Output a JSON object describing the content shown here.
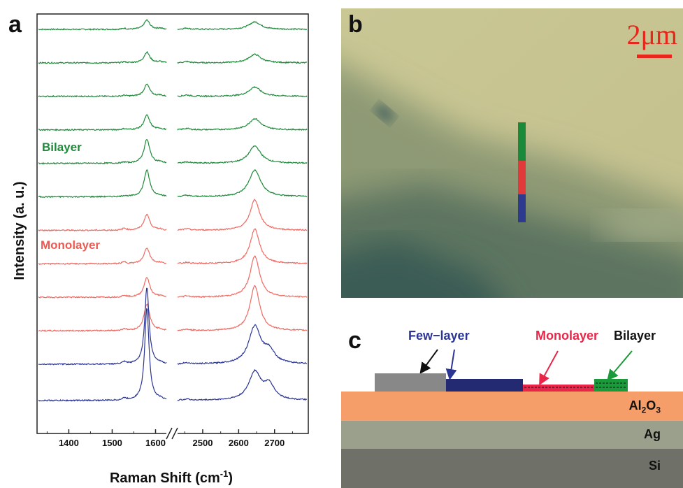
{
  "figure": {
    "panel_a": {
      "letter": "a",
      "xlabel": "Raman Shift (cm",
      "xlabel_sup": "-1",
      "xlabel_close": ")",
      "ylabel": "Intensity (a. u.)",
      "label_bilayer": "Bilayer",
      "label_monolayer": "Monolayer",
      "colors": {
        "bilayer": "#1e8a3a",
        "monolayer": "#ee6a62",
        "fewlayer": "#2b3593"
      }
    },
    "panel_b": {
      "letter": "b",
      "scale_bar": "2μm",
      "marker_colors": [
        "#1a8a3a",
        "#e23a3a",
        "#2e3a8e"
      ]
    },
    "panel_c": {
      "letter": "c",
      "legend_fewlayer": "Few",
      "legend_fewlayer_dash": "−",
      "legend_fewlayer_tail": "layer",
      "legend_monolayer": "Monolayer",
      "legend_bilayer": "Bilayer",
      "layers": [
        {
          "name": "Al",
          "sub1": "2",
          "mid": "O",
          "sub2": "3",
          "color": "#f59e6a"
        },
        {
          "name": "Ag",
          "color": "#9aa08c"
        },
        {
          "name": "Si",
          "color": "#6f7068"
        }
      ]
    }
  },
  "chart_data": {
    "type": "line",
    "title": "",
    "xlabel": "Raman Shift (cm-1)",
    "ylabel": "Intensity (a. u.)",
    "x_broken_axis": true,
    "x_segments": [
      {
        "range": [
          1330,
          1625
        ],
        "ticks": [
          1400,
          1500,
          1600
        ]
      },
      {
        "range": [
          2430,
          2790
        ],
        "ticks": [
          2500,
          2600,
          2700
        ]
      }
    ],
    "y_ticks_shown": false,
    "grid": false,
    "peaks": {
      "G": 1580,
      "D_prime_2D": 2645
    },
    "series": [
      {
        "name": "Bilayer",
        "group": "bilayer",
        "G": 0.35,
        "twoD": 0.28,
        "twoD_shoulder": 0.0
      },
      {
        "name": "",
        "group": "bilayer",
        "G": 0.4,
        "twoD": 0.32,
        "twoD_shoulder": 0.0
      },
      {
        "name": "",
        "group": "bilayer",
        "G": 0.45,
        "twoD": 0.35,
        "twoD_shoulder": 0.0
      },
      {
        "name": "",
        "group": "bilayer",
        "G": 0.55,
        "twoD": 0.42,
        "twoD_shoulder": 0.0
      },
      {
        "name": "",
        "group": "bilayer",
        "G": 0.9,
        "twoD": 0.65,
        "twoD_shoulder": 0.0
      },
      {
        "name": "",
        "group": "bilayer",
        "G": 1.0,
        "twoD": 1.0,
        "twoD_shoulder": 0.0
      },
      {
        "name": "Monolayer",
        "group": "monolayer",
        "G": 0.6,
        "twoD": 1.15,
        "twoD_shoulder": 0.0
      },
      {
        "name": "",
        "group": "monolayer",
        "G": 0.6,
        "twoD": 1.3,
        "twoD_shoulder": 0.0
      },
      {
        "name": "",
        "group": "monolayer",
        "G": 0.75,
        "twoD": 1.55,
        "twoD_shoulder": 0.0
      },
      {
        "name": "",
        "group": "monolayer",
        "G": 1.0,
        "twoD": 1.7,
        "twoD_shoulder": 0.0
      },
      {
        "name": "Few-layer",
        "group": "fewlayer",
        "G": 2.9,
        "twoD": 1.4,
        "twoD_shoulder": 0.45
      },
      {
        "name": "",
        "group": "fewlayer",
        "G": 3.5,
        "twoD": 1.05,
        "twoD_shoulder": 0.55
      }
    ]
  }
}
